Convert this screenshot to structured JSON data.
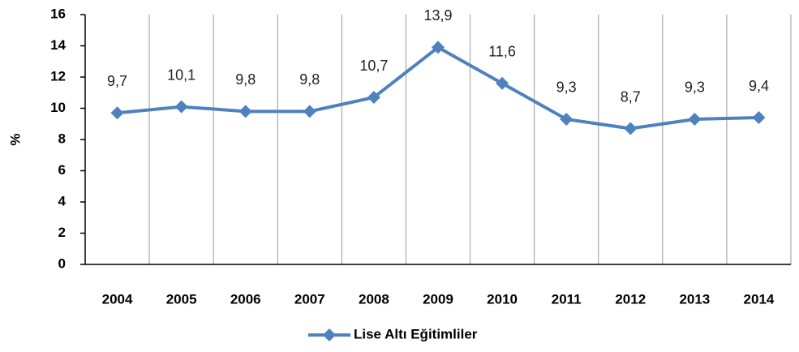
{
  "chart_data": {
    "type": "line",
    "categories": [
      "2004",
      "2005",
      "2006",
      "2007",
      "2008",
      "2009",
      "2010",
      "2011",
      "2012",
      "2013",
      "2014"
    ],
    "series": [
      {
        "name": "Lise Altı Eğitimliler",
        "color": "#4f81bd",
        "values": [
          9.7,
          10.1,
          9.8,
          9.8,
          10.7,
          13.9,
          11.6,
          9.3,
          8.7,
          9.3,
          9.4
        ],
        "value_labels": [
          "9,7",
          "10,1",
          "9,8",
          "9,8",
          "10,7",
          "13,9",
          "11,6",
          "9,3",
          "8,7",
          "9,3",
          "9,4"
        ]
      }
    ],
    "y_label": "%",
    "ylim": [
      0,
      16
    ],
    "yticks": [
      0,
      2,
      4,
      6,
      8,
      10,
      12,
      14,
      16
    ],
    "grid": true,
    "legend": "bottom"
  }
}
